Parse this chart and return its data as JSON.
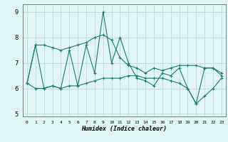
{
  "xlabel": "Humidex (Indice chaleur)",
  "x": [
    0,
    1,
    2,
    3,
    4,
    5,
    6,
    7,
    8,
    9,
    10,
    11,
    12,
    13,
    14,
    15,
    16,
    17,
    18,
    19,
    20,
    21,
    22,
    23
  ],
  "line1": [
    6.2,
    7.7,
    7.7,
    7.6,
    7.5,
    7.6,
    7.7,
    7.8,
    8.0,
    8.1,
    7.9,
    7.2,
    6.9,
    6.8,
    6.6,
    6.8,
    6.7,
    6.8,
    6.9,
    6.9,
    6.9,
    6.8,
    6.8,
    6.6
  ],
  "line2": [
    6.2,
    7.7,
    6.0,
    6.1,
    6.0,
    7.5,
    6.1,
    7.7,
    6.6,
    9.0,
    7.0,
    8.0,
    7.0,
    6.4,
    6.3,
    6.1,
    6.6,
    6.5,
    6.8,
    6.0,
    5.4,
    6.8,
    6.8,
    6.5
  ],
  "line3": [
    6.2,
    6.0,
    6.0,
    6.1,
    6.0,
    6.1,
    6.1,
    6.2,
    6.3,
    6.4,
    6.4,
    6.4,
    6.5,
    6.5,
    6.4,
    6.4,
    6.4,
    6.3,
    6.2,
    6.0,
    5.4,
    5.7,
    6.0,
    6.4
  ],
  "line_color": "#1a7a6e",
  "bg_color": "#e0f5f5",
  "grid_color": "#b0d8d8",
  "ylim": [
    4.9,
    9.3
  ],
  "xlim": [
    -0.5,
    23.5
  ],
  "yticks": [
    5,
    6,
    7,
    8,
    9
  ],
  "xticks": [
    0,
    1,
    2,
    3,
    4,
    5,
    6,
    7,
    8,
    9,
    10,
    11,
    12,
    13,
    14,
    15,
    16,
    17,
    18,
    19,
    20,
    21,
    22,
    23
  ],
  "xlabel_fontsize": 6.0,
  "tick_fontsize_x": 4.5,
  "tick_fontsize_y": 6.0,
  "linewidth": 0.8,
  "markersize": 3.0
}
